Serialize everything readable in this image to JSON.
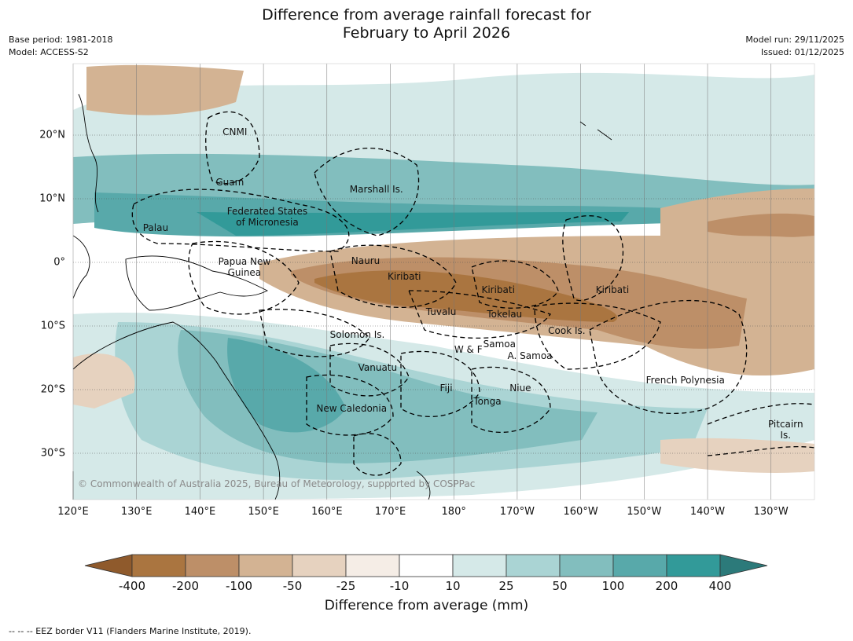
{
  "title": {
    "line1": "Difference from average rainfall forecast for",
    "line2": "February to April 2026"
  },
  "metadata": {
    "base_period": "Base period: 1981-2018",
    "model": "Model: ACCESS-S2",
    "model_run": "Model run: 29/11/2025",
    "issued": "Issued: 01/12/2025"
  },
  "axes": {
    "latitudes": [
      {
        "label": "20°N",
        "lat": 20
      },
      {
        "label": "10°N",
        "lat": 10
      },
      {
        "label": "0°",
        "lat": 0
      },
      {
        "label": "10°S",
        "lat": -10
      },
      {
        "label": "20°S",
        "lat": -20
      },
      {
        "label": "30°S",
        "lat": -30
      }
    ],
    "longitudes": [
      {
        "label": "120°E",
        "lon": 120
      },
      {
        "label": "130°E",
        "lon": 130
      },
      {
        "label": "140°E",
        "lon": 140
      },
      {
        "label": "150°E",
        "lon": 150
      },
      {
        "label": "160°E",
        "lon": 160
      },
      {
        "label": "170°E",
        "lon": 170
      },
      {
        "label": "180°",
        "lon": 180
      },
      {
        "label": "170°W",
        "lon": 190
      },
      {
        "label": "160°W",
        "lon": 200
      },
      {
        "label": "150°W",
        "lon": 210
      },
      {
        "label": "140°W",
        "lon": 220
      },
      {
        "label": "130°W",
        "lon": 230
      }
    ]
  },
  "regions": [
    {
      "label": "CNMI",
      "lon": 145.5,
      "lat": 20.5
    },
    {
      "label": "Guam",
      "lon": 144.7,
      "lat": 12.6
    },
    {
      "label": "Marshall Is.",
      "lon": 167.8,
      "lat": 11.5
    },
    {
      "label": "Federated States\nof Micronesia",
      "lon": 150.6,
      "lat": 7.1
    },
    {
      "label": "Palau",
      "lon": 133.0,
      "lat": 5.4
    },
    {
      "label": "Papua New\nGuinea",
      "lon": 147.0,
      "lat": -0.8
    },
    {
      "label": "Nauru",
      "lon": 166.1,
      "lat": 0.2
    },
    {
      "label": "Kiribati",
      "lon": 172.2,
      "lat": -2.2
    },
    {
      "label": "Kiribati",
      "lon": 187.0,
      "lat": -4.3
    },
    {
      "label": "Kiribati",
      "lon": 205.0,
      "lat": -4.3
    },
    {
      "label": "Tuvalu",
      "lon": 178.0,
      "lat": -7.8
    },
    {
      "label": "Tokelau",
      "lon": 188.0,
      "lat": -8.1
    },
    {
      "label": "Cook Is.",
      "lon": 197.8,
      "lat": -10.8
    },
    {
      "label": "Solomon Is.",
      "lon": 164.8,
      "lat": -11.4
    },
    {
      "label": "Samoa",
      "lon": 187.2,
      "lat": -12.9
    },
    {
      "label": "W & F",
      "lon": 182.3,
      "lat": -13.7
    },
    {
      "label": "A. Samoa",
      "lon": 192.0,
      "lat": -14.7
    },
    {
      "label": "Vanuatu",
      "lon": 168.0,
      "lat": -16.6
    },
    {
      "label": "Fiji",
      "lon": 178.8,
      "lat": -19.8
    },
    {
      "label": "Niue",
      "lon": 190.5,
      "lat": -19.8
    },
    {
      "label": "French Polynesia",
      "lon": 216.5,
      "lat": -18.5
    },
    {
      "label": "Tonga",
      "lon": 185.3,
      "lat": -21.9
    },
    {
      "label": "New Caledonia",
      "lon": 163.9,
      "lat": -23.0
    },
    {
      "label": "Pitcairn\nIs.",
      "lon": 232.3,
      "lat": -26.3
    }
  ],
  "copyright": "© Commonwealth of Australia 2025, Bureau of Meteorology, supported by COSPPac",
  "colorbar": {
    "title": "Difference from average (mm)",
    "ticks": [
      "-400",
      "-200",
      "-100",
      "-50",
      "-25",
      "-10",
      "10",
      "25",
      "50",
      "100",
      "200",
      "400"
    ],
    "colors": [
      "#8f5a2c",
      "#aa7540",
      "#bd8f68",
      "#d3b393",
      "#e6d2bf",
      "#f5ede6",
      "#ffffff",
      "#d5e9e8",
      "#aad4d4",
      "#82bebe",
      "#58a9aa",
      "#329a99",
      "#2c7a7a"
    ]
  },
  "footnote": "--  --  -- EEZ border V11 (Flanders Marine Institute, 2019)."
}
